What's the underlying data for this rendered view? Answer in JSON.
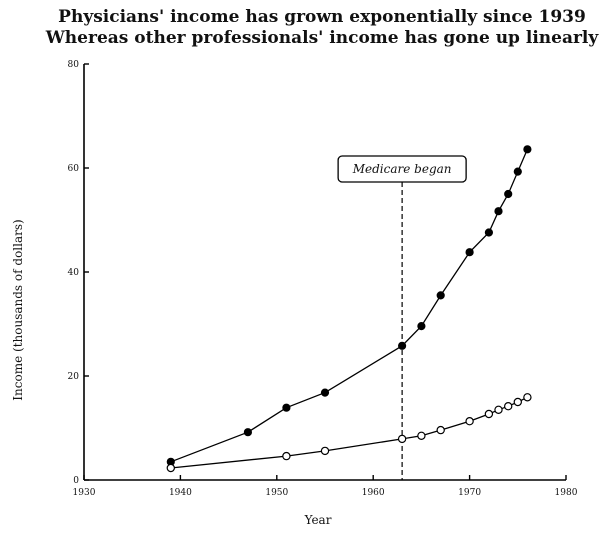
{
  "chart_data": {
    "type": "line",
    "title": "Physicians' income has grown exponentially since 1939",
    "subtitle": "Whereas other professionals' income has gone up linearly",
    "xlabel": "Year",
    "ylabel": "Income (thousands of dollars)",
    "xlim": [
      1930,
      1980
    ],
    "ylim": [
      0,
      80
    ],
    "x_ticks": [
      1930,
      1940,
      1950,
      1960,
      1970,
      1980
    ],
    "y_ticks": [
      0,
      20,
      40,
      60,
      80
    ],
    "grid": false,
    "series": [
      {
        "marker": "filled-circle",
        "color": "#000000",
        "x": [
          1939,
          1947,
          1951,
          1955,
          1963,
          1965,
          1967,
          1970,
          1972,
          1973,
          1974,
          1975,
          1976
        ],
        "y": [
          3.5,
          9.2,
          13.9,
          16.8,
          25.8,
          29.6,
          35.5,
          43.8,
          47.6,
          51.7,
          55.0,
          59.3,
          63.6
        ]
      },
      {
        "marker": "open-circle",
        "color": "#000000",
        "x": [
          1939,
          1951,
          1955,
          1963,
          1965,
          1967,
          1970,
          1972,
          1973,
          1974,
          1975,
          1976
        ],
        "y": [
          2.3,
          4.6,
          5.6,
          7.9,
          8.5,
          9.6,
          11.3,
          12.7,
          13.5,
          14.2,
          15.0,
          15.9
        ]
      }
    ],
    "annotations": [
      {
        "text": "Medicare began",
        "x": 1963
      }
    ]
  }
}
